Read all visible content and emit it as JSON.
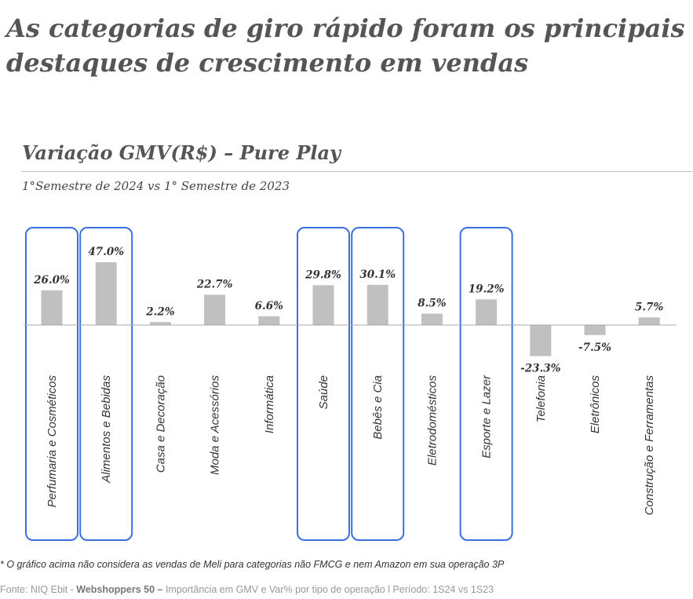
{
  "headline": "As categorias de giro rápido foram os principais destaques de crescimento em vendas",
  "footnote": "* O gráfico acima não considera as vendas de Meli para categorias não FMCG e nem Amazon em sua operação 3P",
  "source": {
    "prefix": "Fonte: NIQ Ebit - ",
    "bold": "Webshoppers 50 –",
    "suffix": " Importância em GMV e Var% por tipo de operação l Período: 1S24 vs 1S23"
  },
  "colors": {
    "bar": "#c0c0c0",
    "highlight_border": "#3b6fe0",
    "text": "#333333"
  },
  "chart_data": {
    "type": "bar",
    "title": "Variação GMV(R$) – Pure Play",
    "subtitle": "1°Semestre de 2024 vs 1° Semestre de 2023",
    "categories": [
      "Perfumaria e Cosméticos",
      "Alimentos e Bebidas",
      "Casa e Decoração",
      "Moda e Acessórios",
      "Informática",
      "Saúde",
      "Bebês e Cia",
      "Eletrodomésticos",
      "Esporte e Lazer",
      "Telefonia",
      "Eletrônicos",
      "Construção e Ferramentas"
    ],
    "values": [
      26.0,
      47.0,
      2.2,
      22.7,
      6.6,
      29.8,
      30.1,
      8.5,
      19.2,
      -23.3,
      -7.5,
      5.7
    ],
    "value_labels": [
      "26.0%",
      "47.0%",
      "2.2%",
      "22.7%",
      "6.6%",
      "29.8%",
      "30.1%",
      "8.5%",
      "19.2%",
      "-23.3%",
      "-7.5%",
      "5.7%"
    ],
    "highlighted": [
      "Perfumaria e Cosméticos",
      "Alimentos e Bebidas",
      "Saúde",
      "Bebês e Cia",
      "Esporte e Lazer"
    ],
    "grid": false,
    "legend": "none"
  }
}
